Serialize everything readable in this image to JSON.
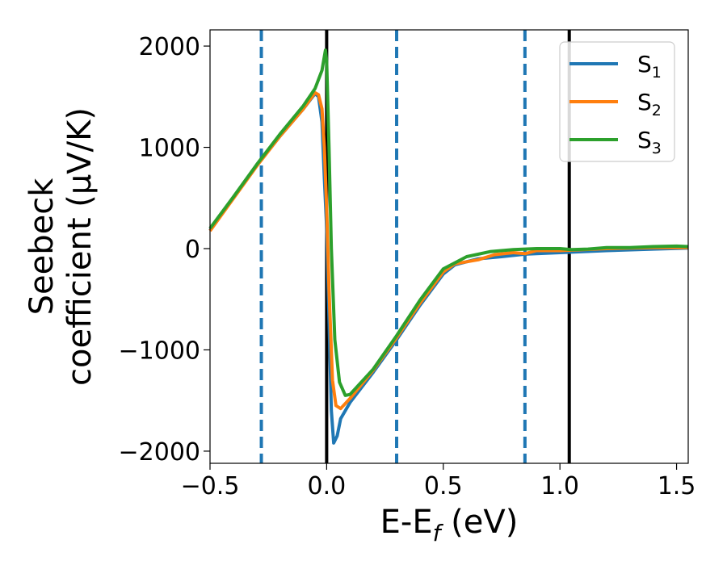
{
  "chart_data": {
    "type": "line",
    "xlabel": {
      "base": "E-E",
      "sub": "f",
      "rest": " (eV)"
    },
    "ylabel": {
      "line1": "Seebeck",
      "line2": "coefficient  (μV/K)"
    },
    "xlim": [
      -0.5,
      1.55
    ],
    "ylim": [
      -2120,
      2160
    ],
    "xticks": [
      -0.5,
      0.0,
      0.5,
      1.0,
      1.5
    ],
    "xtick_labels": [
      "−0.5",
      "0.0",
      "0.5",
      "1.0",
      "1.5"
    ],
    "yticks": [
      -2000,
      -1000,
      0,
      1000,
      2000
    ],
    "ytick_labels": [
      "−2000",
      "−1000",
      "0",
      "1000",
      "2000"
    ],
    "grid": false,
    "legend_position": "top-right",
    "vlines": [
      {
        "x": -0.28,
        "style": "dashed",
        "color": "#1f77b4"
      },
      {
        "x": 0.0,
        "style": "solid",
        "color": "#000000"
      },
      {
        "x": 0.3,
        "style": "dashed",
        "color": "#1f77b4"
      },
      {
        "x": 0.85,
        "style": "dashed",
        "color": "#1f77b4"
      },
      {
        "x": 1.04,
        "style": "solid",
        "color": "#000000"
      }
    ],
    "series": [
      {
        "name": "S",
        "sub": "1",
        "color": "#1f77b4",
        "points": [
          [
            -0.5,
            180
          ],
          [
            -0.4,
            500
          ],
          [
            -0.3,
            820
          ],
          [
            -0.2,
            1110
          ],
          [
            -0.1,
            1380
          ],
          [
            -0.05,
            1530
          ],
          [
            -0.035,
            1500
          ],
          [
            -0.02,
            1250
          ],
          [
            -0.01,
            700
          ],
          [
            0.0,
            200
          ],
          [
            0.01,
            -700
          ],
          [
            0.02,
            -1600
          ],
          [
            0.03,
            -1920
          ],
          [
            0.045,
            -1850
          ],
          [
            0.06,
            -1680
          ],
          [
            0.1,
            -1520
          ],
          [
            0.2,
            -1220
          ],
          [
            0.3,
            -900
          ],
          [
            0.4,
            -560
          ],
          [
            0.5,
            -250
          ],
          [
            0.55,
            -160
          ],
          [
            0.65,
            -100
          ],
          [
            0.75,
            -80
          ],
          [
            0.85,
            -55
          ],
          [
            1.0,
            -40
          ],
          [
            1.2,
            -20
          ],
          [
            1.4,
            -5
          ],
          [
            1.55,
            5
          ]
        ]
      },
      {
        "name": "S",
        "sub": "2",
        "color": "#ff7f0e",
        "points": [
          [
            -0.5,
            175
          ],
          [
            -0.4,
            495
          ],
          [
            -0.3,
            815
          ],
          [
            -0.2,
            1110
          ],
          [
            -0.1,
            1380
          ],
          [
            -0.05,
            1540
          ],
          [
            -0.035,
            1520
          ],
          [
            -0.02,
            1380
          ],
          [
            -0.01,
            1000
          ],
          [
            0.0,
            400
          ],
          [
            0.01,
            -400
          ],
          [
            0.025,
            -1300
          ],
          [
            0.04,
            -1550
          ],
          [
            0.06,
            -1580
          ],
          [
            0.1,
            -1480
          ],
          [
            0.2,
            -1200
          ],
          [
            0.3,
            -880
          ],
          [
            0.4,
            -540
          ],
          [
            0.5,
            -230
          ],
          [
            0.55,
            -150
          ],
          [
            0.65,
            -110
          ],
          [
            0.72,
            -60
          ],
          [
            0.8,
            -40
          ],
          [
            0.85,
            -50
          ],
          [
            0.9,
            -20
          ],
          [
            1.0,
            -20
          ],
          [
            1.2,
            0
          ],
          [
            1.4,
            10
          ],
          [
            1.55,
            10
          ]
        ]
      },
      {
        "name": "S",
        "sub": "3",
        "color": "#2ca02c",
        "points": [
          [
            -0.5,
            200
          ],
          [
            -0.4,
            510
          ],
          [
            -0.3,
            830
          ],
          [
            -0.2,
            1130
          ],
          [
            -0.1,
            1410
          ],
          [
            -0.05,
            1580
          ],
          [
            -0.02,
            1760
          ],
          [
            -0.005,
            1960
          ],
          [
            0.0,
            1850
          ],
          [
            0.01,
            1000
          ],
          [
            0.02,
            0
          ],
          [
            0.035,
            -900
          ],
          [
            0.055,
            -1320
          ],
          [
            0.08,
            -1450
          ],
          [
            0.1,
            -1440
          ],
          [
            0.2,
            -1190
          ],
          [
            0.3,
            -860
          ],
          [
            0.4,
            -510
          ],
          [
            0.5,
            -200
          ],
          [
            0.6,
            -80
          ],
          [
            0.7,
            -30
          ],
          [
            0.8,
            -10
          ],
          [
            0.9,
            0
          ],
          [
            1.0,
            0
          ],
          [
            1.05,
            -10
          ],
          [
            1.12,
            -5
          ],
          [
            1.2,
            10
          ],
          [
            1.3,
            10
          ],
          [
            1.4,
            20
          ],
          [
            1.5,
            25
          ],
          [
            1.55,
            20
          ]
        ]
      }
    ]
  }
}
